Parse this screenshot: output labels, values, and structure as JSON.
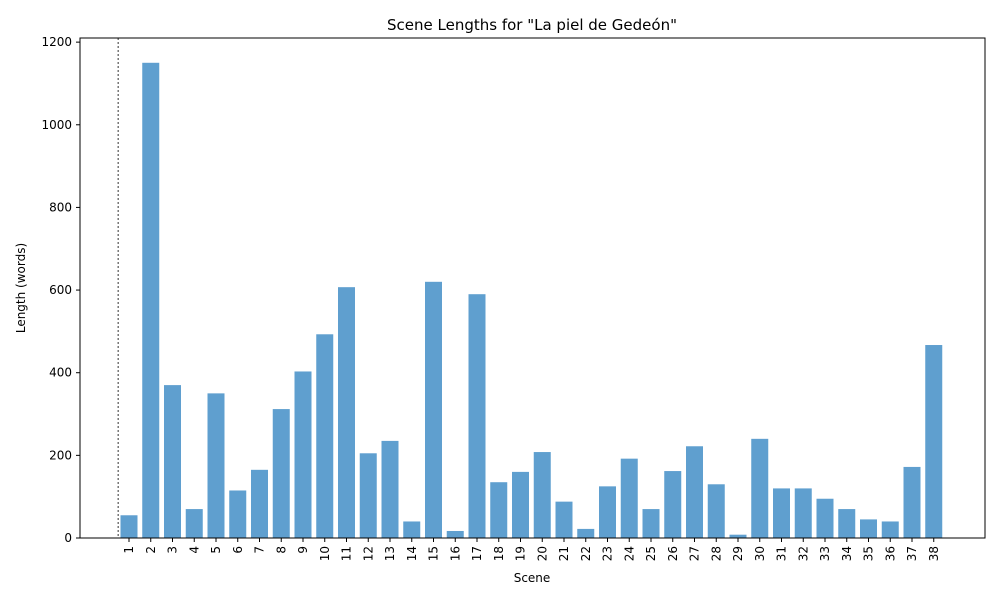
{
  "chart_data": {
    "type": "bar",
    "title": "Scene Lengths for \"La piel de Gedeón\"",
    "xlabel": "Scene",
    "ylabel": "Length (words)",
    "categories": [
      "1",
      "2",
      "3",
      "4",
      "5",
      "6",
      "7",
      "8",
      "9",
      "10",
      "11",
      "12",
      "13",
      "14",
      "15",
      "16",
      "17",
      "18",
      "19",
      "20",
      "21",
      "22",
      "23",
      "24",
      "25",
      "26",
      "27",
      "28",
      "29",
      "30",
      "31",
      "32",
      "33",
      "34",
      "35",
      "36",
      "37",
      "38"
    ],
    "values": [
      55,
      1150,
      370,
      70,
      350,
      115,
      165,
      312,
      403,
      493,
      607,
      205,
      235,
      40,
      620,
      17,
      590,
      135,
      160,
      208,
      88,
      22,
      125,
      192,
      70,
      162,
      222,
      130,
      8,
      240,
      120,
      120,
      95,
      70,
      45,
      40,
      172,
      467
    ],
    "ylim": [
      0,
      1210
    ],
    "yticks": [
      0,
      200,
      400,
      600,
      800,
      1000,
      1200
    ],
    "bar_color": "#5f9fcf",
    "grid": false,
    "marker_line_at_category": "1"
  }
}
